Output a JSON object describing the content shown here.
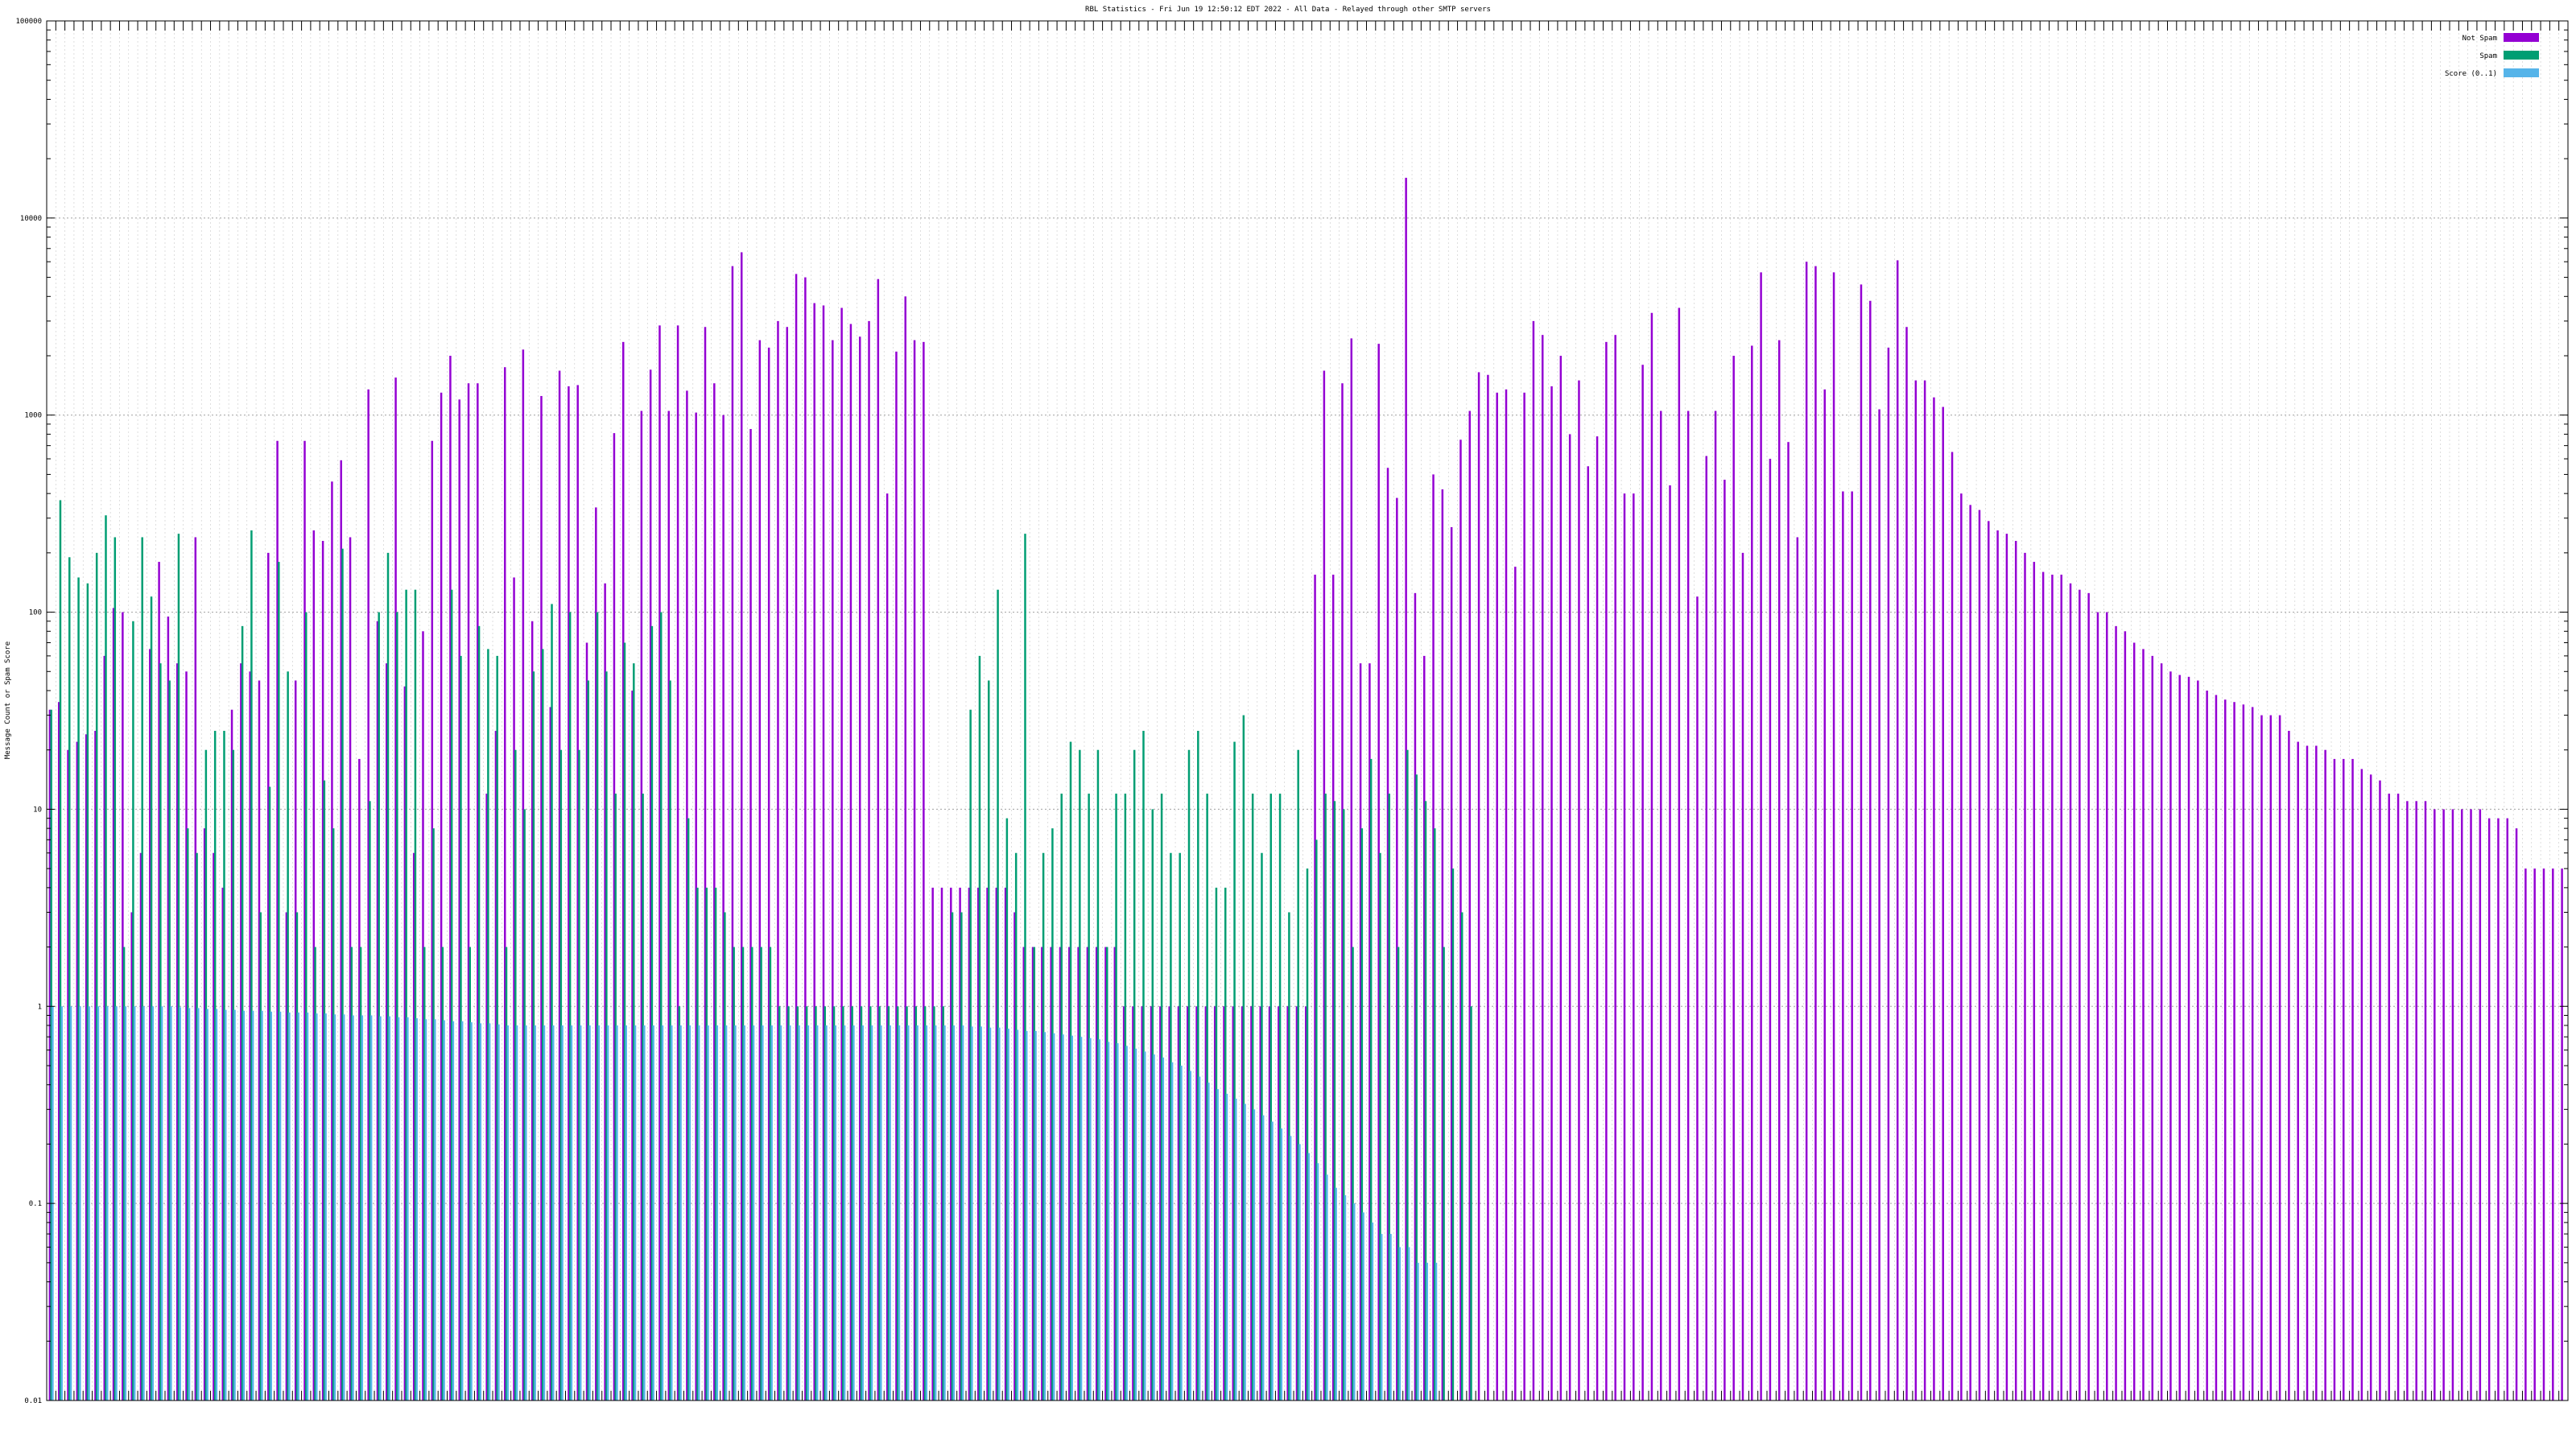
{
  "chart_data": {
    "type": "bar",
    "title": "RBL Statistics - Fri Jun 19 12:50:12 EDT 2022 - All Data - Relayed through other SMTP servers",
    "xlabel": "",
    "ylabel": "Message Count or Spam Score",
    "yscale": "log",
    "ylim": [
      0.01,
      100000
    ],
    "yticks": [
      {
        "value": 100000,
        "label": "100000"
      },
      {
        "value": 10000,
        "label": "10000"
      },
      {
        "value": 1000,
        "label": "1000"
      },
      {
        "value": 100,
        "label": "100"
      },
      {
        "value": 10,
        "label": "10"
      },
      {
        "value": 1,
        "label": "1"
      },
      {
        "value": 0.1,
        "label": "0.1"
      },
      {
        "value": 0.01,
        "label": "0.01"
      }
    ],
    "grid": true,
    "legend_position": "top-right",
    "colors": {
      "not_spam": "#9400d3",
      "spam": "#009e73",
      "score": "#56b4e9"
    },
    "series": [
      {
        "name": "Not Spam",
        "color": "#9400d3",
        "values": [
          32,
          35,
          20,
          22,
          24,
          25,
          60,
          105,
          100,
          3,
          6,
          65,
          180,
          95,
          55,
          50,
          240,
          8,
          6,
          4,
          32,
          55,
          50,
          45,
          200,
          740,
          3,
          45,
          740,
          260,
          230,
          460,
          590,
          240,
          18,
          1350,
          90,
          55,
          1550,
          42,
          6,
          80,
          740,
          1300,
          2000,
          1200,
          1450,
          1450,
          12,
          25,
          1750,
          150,
          2150,
          90,
          1250,
          33,
          1680,
          1400,
          1420,
          70,
          340,
          140,
          810,
          2350,
          40,
          1050,
          1700,
          2850,
          1050,
          2850,
          1330,
          1030,
          2800,
          1450,
          1000,
          5700,
          6700,
          850,
          2400,
          2200,
          3000,
          2800,
          5200,
          5000,
          3700,
          3600,
          2400,
          3500,
          2900,
          2500,
          3000,
          4900,
          400,
          2100,
          4000,
          2400,
          2350,
          4,
          4,
          4,
          4,
          4,
          4,
          4,
          4,
          4,
          3,
          2,
          2,
          2,
          2,
          2,
          2,
          2,
          2,
          2,
          2,
          2,
          1,
          1,
          1,
          1,
          1,
          1,
          1,
          1,
          1,
          1,
          1,
          1,
          1,
          1,
          1,
          1,
          1,
          1,
          1,
          1,
          1,
          155,
          1680,
          155,
          1450,
          2450,
          55,
          55,
          2300,
          540,
          380,
          16000,
          125,
          60,
          500,
          420,
          270,
          750,
          1050,
          1650,
          1600,
          1300,
          1350,
          170,
          1300,
          3000,
          2550,
          1400,
          2000,
          800,
          1500,
          550,
          780,
          2350,
          2550,
          400,
          400,
          1800,
          3300,
          1050,
          440,
          3500,
          1050,
          120,
          620,
          1050,
          470,
          2000,
          200,
          2250,
          5300,
          600,
          2400,
          730,
          240,
          6000,
          5700,
          1350,
          5300,
          410,
          410,
          4600,
          3800,
          1070,
          2200,
          6100,
          2800,
          1500,
          1500,
          1230,
          1100,
          650,
          400,
          350,
          330,
          290,
          260,
          250,
          230,
          200,
          180,
          160,
          155,
          155,
          140,
          130,
          125,
          100,
          100,
          85,
          80,
          70,
          65,
          60,
          55,
          50,
          48,
          47,
          45,
          40,
          38,
          36,
          35,
          34,
          33,
          30,
          30,
          30,
          25,
          22,
          21,
          21,
          20,
          18,
          18,
          18,
          16,
          15,
          14,
          12,
          12,
          11,
          11,
          11,
          10,
          10,
          10,
          10,
          10,
          10,
          9,
          9,
          9,
          8,
          5,
          5,
          5,
          5,
          5
        ]
      },
      {
        "name": "Spam",
        "color": "#009e73",
        "values": [
          32,
          370,
          190,
          150,
          140,
          200,
          310,
          240,
          2,
          90,
          240,
          120,
          55,
          45,
          250,
          8,
          6,
          20,
          25,
          25,
          20,
          85,
          260,
          3,
          13,
          180,
          50,
          3,
          100,
          2,
          14,
          8,
          210,
          2,
          2,
          11,
          100,
          200,
          100,
          130,
          130,
          2,
          8,
          2,
          130,
          60,
          2,
          85,
          65,
          60,
          2,
          20,
          10,
          50,
          65,
          110,
          20,
          100,
          20,
          45,
          100,
          50,
          12,
          70,
          55,
          12,
          85,
          100,
          45,
          1,
          9,
          4,
          4,
          4,
          3,
          2,
          2,
          2,
          2,
          2,
          1,
          1,
          1,
          1,
          1,
          1,
          1,
          1,
          1,
          1,
          1,
          1,
          1,
          1,
          1,
          1,
          1,
          1,
          1,
          3,
          3,
          32,
          60,
          45,
          130,
          9,
          6,
          250,
          2,
          6,
          8,
          12,
          22,
          20,
          12,
          20,
          2,
          12,
          12,
          20,
          25,
          10,
          12,
          6,
          6,
          20,
          25,
          12,
          4,
          4,
          22,
          30,
          12,
          6,
          12,
          12,
          3,
          20,
          5,
          7,
          12,
          11,
          10,
          2,
          8,
          18,
          6,
          12,
          2,
          20,
          15,
          11,
          8,
          2,
          5,
          3,
          1
        ]
      },
      {
        "name": "Score (0..1)",
        "color": "#56b4e9",
        "values": [
          1,
          1,
          1,
          1,
          1,
          1,
          1,
          1,
          1,
          1,
          1,
          1,
          1,
          1,
          0.99,
          0.98,
          0.98,
          0.97,
          0.97,
          0.96,
          0.96,
          0.95,
          0.95,
          0.95,
          0.94,
          0.94,
          0.93,
          0.93,
          0.93,
          0.92,
          0.92,
          0.91,
          0.91,
          0.9,
          0.9,
          0.9,
          0.89,
          0.89,
          0.88,
          0.88,
          0.87,
          0.86,
          0.86,
          0.85,
          0.84,
          0.84,
          0.83,
          0.82,
          0.82,
          0.81,
          0.8,
          0.8,
          0.8,
          0.8,
          0.8,
          0.8,
          0.8,
          0.8,
          0.8,
          0.8,
          0.8,
          0.8,
          0.8,
          0.8,
          0.8,
          0.8,
          0.8,
          0.8,
          0.8,
          0.8,
          0.8,
          0.8,
          0.8,
          0.8,
          0.8,
          0.8,
          0.8,
          0.8,
          0.8,
          0.8,
          0.8,
          0.8,
          0.8,
          0.8,
          0.8,
          0.8,
          0.8,
          0.8,
          0.8,
          0.8,
          0.8,
          0.8,
          0.8,
          0.8,
          0.8,
          0.8,
          0.8,
          0.8,
          0.8,
          0.8,
          0.8,
          0.79,
          0.79,
          0.78,
          0.78,
          0.77,
          0.76,
          0.75,
          0.75,
          0.74,
          0.73,
          0.72,
          0.71,
          0.7,
          0.69,
          0.68,
          0.66,
          0.65,
          0.63,
          0.61,
          0.59,
          0.57,
          0.55,
          0.52,
          0.5,
          0.47,
          0.44,
          0.41,
          0.38,
          0.36,
          0.34,
          0.32,
          0.3,
          0.28,
          0.26,
          0.24,
          0.22,
          0.2,
          0.18,
          0.16,
          0.14,
          0.12,
          0.11,
          0.1,
          0.09,
          0.08,
          0.07,
          0.07,
          0.06,
          0.06,
          0.05,
          0.05,
          0.05
        ]
      }
    ]
  }
}
